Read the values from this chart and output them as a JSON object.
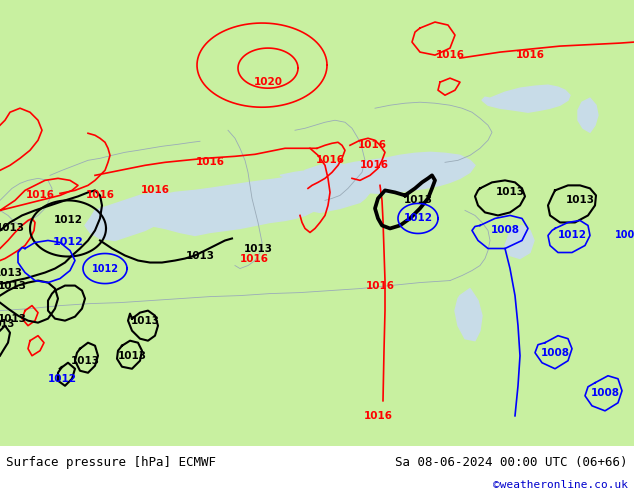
{
  "title_left": "Surface pressure [hPa] ECMWF",
  "title_right": "Sa 08-06-2024 00:00 UTC (06+66)",
  "copyright": "©weatheronline.co.uk",
  "land_color": "#c8f0a0",
  "sea_color": "#d8e8f0",
  "fig_bg": "#d8e8f0",
  "white_sea": "#e8f0f8",
  "fig_width": 6.34,
  "fig_height": 4.9,
  "dpi": 100
}
